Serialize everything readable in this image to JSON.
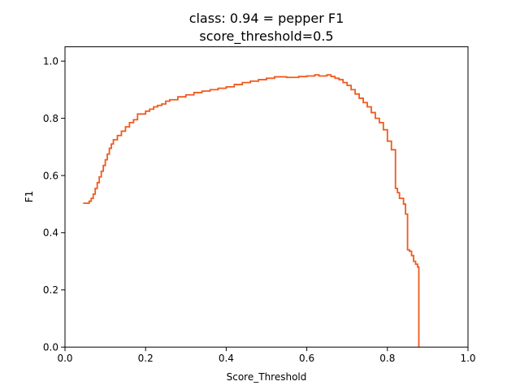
{
  "chart_data": {
    "type": "line",
    "title": "class: 0.94 = pepper F1",
    "subtitle": "score_threshold=0.5",
    "xlabel": "Score_Threshold",
    "ylabel": "F1",
    "xlim": [
      0.0,
      1.0
    ],
    "ylim": [
      0.0,
      1.05
    ],
    "x_ticks": [
      "0.0",
      "0.2",
      "0.4",
      "0.6",
      "0.8",
      "1.0"
    ],
    "y_ticks": [
      "0.0",
      "0.2",
      "0.4",
      "0.6",
      "0.8",
      "1.0"
    ],
    "grid": false,
    "legend": "none",
    "line_style": "step",
    "series": [
      {
        "color": "#f05a1e",
        "x": [
          0.045,
          0.06,
          0.065,
          0.07,
          0.075,
          0.08,
          0.085,
          0.09,
          0.095,
          0.1,
          0.105,
          0.11,
          0.115,
          0.12,
          0.13,
          0.14,
          0.15,
          0.16,
          0.17,
          0.18,
          0.2,
          0.21,
          0.22,
          0.23,
          0.24,
          0.25,
          0.26,
          0.28,
          0.3,
          0.32,
          0.34,
          0.36,
          0.38,
          0.4,
          0.42,
          0.44,
          0.46,
          0.48,
          0.5,
          0.52,
          0.55,
          0.58,
          0.6,
          0.62,
          0.63,
          0.65,
          0.66,
          0.67,
          0.68,
          0.69,
          0.7,
          0.71,
          0.72,
          0.73,
          0.74,
          0.75,
          0.76,
          0.77,
          0.78,
          0.79,
          0.8,
          0.81,
          0.82,
          0.825,
          0.83,
          0.835,
          0.84,
          0.845,
          0.85,
          0.855,
          0.86,
          0.865,
          0.87,
          0.875,
          0.878
        ],
        "y": [
          0.503,
          0.51,
          0.52,
          0.535,
          0.555,
          0.575,
          0.595,
          0.615,
          0.635,
          0.655,
          0.675,
          0.695,
          0.71,
          0.725,
          0.74,
          0.755,
          0.77,
          0.785,
          0.795,
          0.815,
          0.825,
          0.832,
          0.84,
          0.845,
          0.85,
          0.86,
          0.865,
          0.875,
          0.882,
          0.89,
          0.895,
          0.9,
          0.905,
          0.91,
          0.918,
          0.925,
          0.93,
          0.935,
          0.94,
          0.945,
          0.943,
          0.946,
          0.948,
          0.952,
          0.948,
          0.952,
          0.946,
          0.94,
          0.935,
          0.925,
          0.915,
          0.9,
          0.885,
          0.87,
          0.855,
          0.84,
          0.82,
          0.8,
          0.785,
          0.76,
          0.72,
          0.69,
          0.555,
          0.54,
          0.52,
          0.52,
          0.5,
          0.465,
          0.34,
          0.335,
          0.32,
          0.3,
          0.29,
          0.28,
          0.0
        ]
      }
    ]
  }
}
